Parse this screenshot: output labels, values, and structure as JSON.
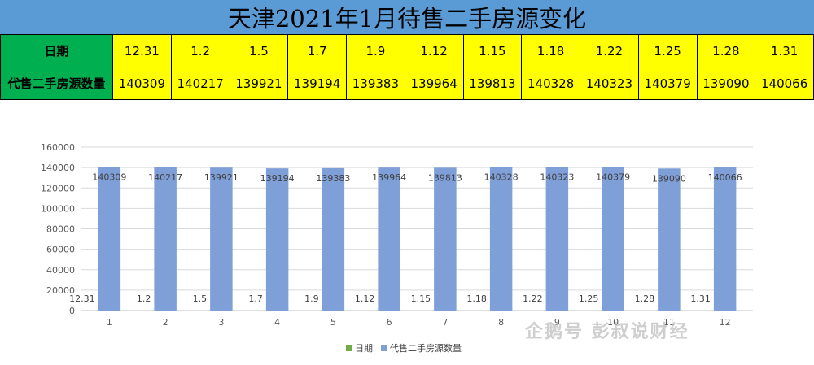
{
  "title": "天津2021年1月待售二手房源变化",
  "table": {
    "row1_header": "日期",
    "row2_header": "代售二手房源数量",
    "dates": [
      "12.31",
      "1.2",
      "1.5",
      "1.7",
      "1.9",
      "1.12",
      "1.15",
      "1.18",
      "1.22",
      "1.25",
      "1.28",
      "1.31"
    ],
    "counts": [
      "140309",
      "140217",
      "139921",
      "139194",
      "139383",
      "139964",
      "139813",
      "140328",
      "140323",
      "140379",
      "139090",
      "140066"
    ]
  },
  "chart_data": {
    "type": "bar",
    "categories": [
      "1",
      "2",
      "3",
      "4",
      "5",
      "6",
      "7",
      "8",
      "9",
      "10",
      "11",
      "12"
    ],
    "series": [
      {
        "name": "日期",
        "values": [
          12.31,
          1.2,
          1.5,
          1.7,
          1.9,
          1.12,
          1.15,
          1.18,
          1.22,
          1.25,
          1.28,
          1.31
        ],
        "labels": [
          "12.31",
          "1.2",
          "1.5",
          "1.7",
          "1.9",
          "1.12",
          "1.15",
          "1.18",
          "1.22",
          "1.25",
          "1.28",
          "1.31"
        ],
        "color": "#70ad47"
      },
      {
        "name": "代售二手房源数量",
        "values": [
          140309,
          140217,
          139921,
          139194,
          139383,
          139964,
          139813,
          140328,
          140323,
          140379,
          139090,
          140066
        ],
        "color": "#7f9fd8"
      }
    ],
    "yticks": [
      "0",
      "20000",
      "40000",
      "60000",
      "80000",
      "100000",
      "120000",
      "140000",
      "160000"
    ],
    "ylim": [
      0,
      160000
    ],
    "grid": true,
    "legend_position": "bottom"
  },
  "watermark": "企鹅号 彭叔说财经"
}
